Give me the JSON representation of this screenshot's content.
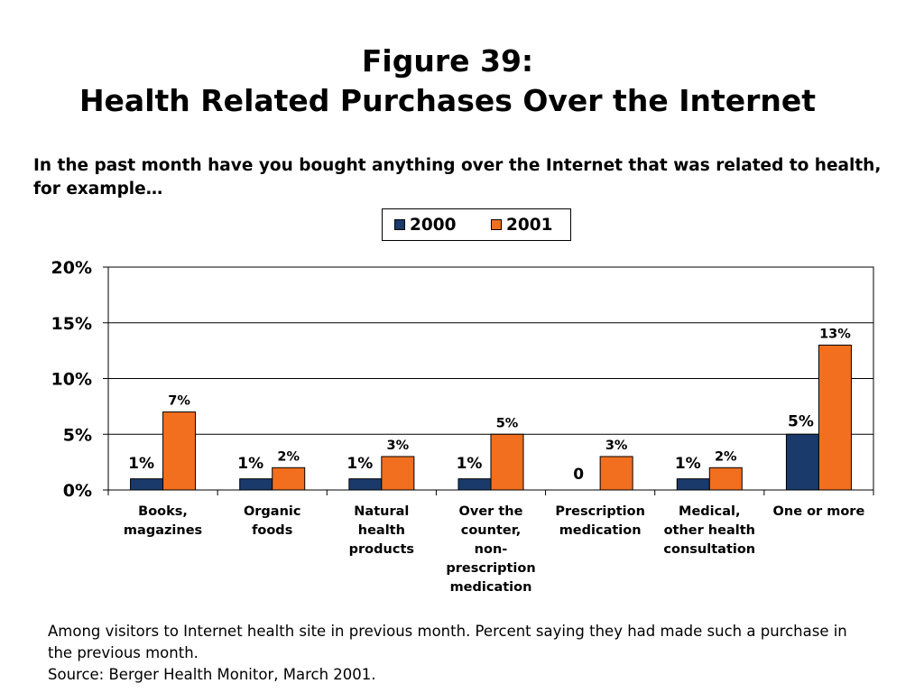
{
  "title": {
    "line1": "Figure 39:",
    "line2": "Health Related Purchases Over the Internet"
  },
  "question": "In the past month have you bought anything over the Internet that was related to health, for example…",
  "footnote": {
    "line1": "Among visitors to Internet health site in previous month. Percent saying they had made such a purchase in",
    "line2": "the previous month.",
    "line3": "Source: Berger Health Monitor, March 2001."
  },
  "colors": {
    "series_2000": "#1a3a6b",
    "series_2001": "#f26f1f"
  },
  "chart_data": {
    "type": "bar",
    "categories": [
      [
        "Books,",
        "magazines"
      ],
      [
        "Organic",
        "foods"
      ],
      [
        "Natural",
        "health",
        "products"
      ],
      [
        "Over the",
        "counter,",
        "non-",
        "prescription",
        "medication"
      ],
      [
        "Prescription",
        "medication"
      ],
      [
        "Medical,",
        "other health",
        "consultation"
      ],
      [
        "One or more"
      ]
    ],
    "series": [
      {
        "name": "2000",
        "values": [
          1,
          1,
          1,
          1,
          0,
          1,
          5
        ],
        "labels": [
          "1%",
          "1%",
          "1%",
          "1%",
          "0",
          "1%",
          "5%"
        ]
      },
      {
        "name": "2001",
        "values": [
          7,
          2,
          3,
          5,
          3,
          2,
          13
        ],
        "labels": [
          "7%",
          "2%",
          "3%",
          "5%",
          "3%",
          "2%",
          "13%"
        ]
      }
    ],
    "yticks": [
      "0%",
      "5%",
      "10%",
      "15%",
      "20%"
    ],
    "ylim": [
      0,
      20
    ],
    "grid": true,
    "legend_position": "top-center"
  }
}
